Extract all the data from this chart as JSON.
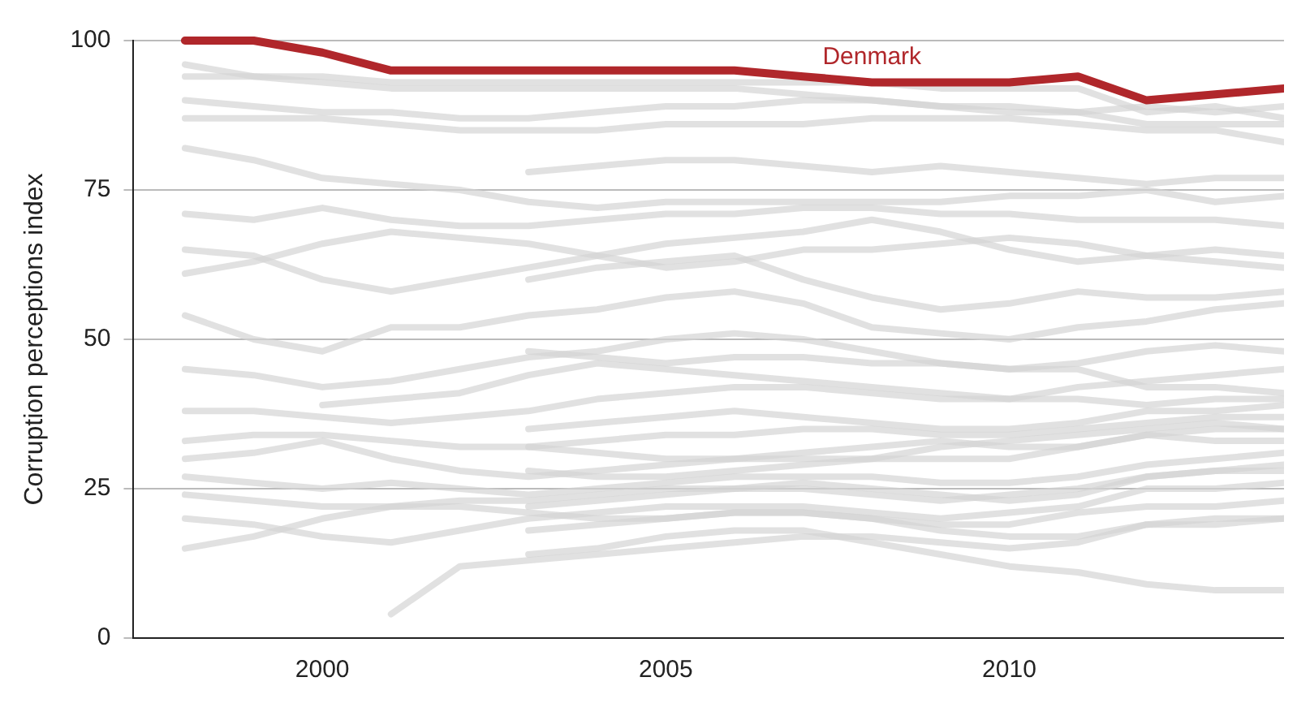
{
  "chart_data": {
    "type": "line",
    "ylabel": "Corruption perceptions index",
    "x": [
      1998,
      1999,
      2000,
      2001,
      2002,
      2003,
      2004,
      2005,
      2006,
      2007,
      2008,
      2009,
      2010,
      2011,
      2012,
      2013,
      2014
    ],
    "xlim": [
      1997.25,
      2014
    ],
    "xticks": [
      2000,
      2005,
      2010
    ],
    "ylim": [
      0,
      100
    ],
    "yticks": [
      0,
      25,
      50,
      75,
      100
    ],
    "grid": "y",
    "legend": false,
    "marker": "none",
    "line_style": "solid",
    "series": [
      {
        "color": "#d4d4d4",
        "values": [
          96,
          94,
          93,
          92,
          92,
          92,
          92,
          92,
          92,
          91,
          90,
          89,
          89,
          88,
          89,
          88,
          89
        ]
      },
      {
        "color": "#d4d4d4",
        "values": [
          94,
          94,
          94,
          93,
          93,
          93,
          93,
          93,
          93,
          93,
          93,
          92,
          92,
          92,
          88,
          89,
          87
        ]
      },
      {
        "color": "#d4d4d4",
        "values": [
          90,
          89,
          88,
          88,
          87,
          87,
          88,
          89,
          89,
          90,
          90,
          89,
          88,
          88,
          86,
          86,
          86
        ]
      },
      {
        "color": "#d4d4d4",
        "values": [
          87,
          87,
          87,
          86,
          85,
          85,
          85,
          86,
          86,
          86,
          87,
          87,
          87,
          86,
          85,
          85,
          83
        ]
      },
      {
        "color": "#d4d4d4",
        "values": [
          82,
          80,
          77,
          76,
          75,
          73,
          72,
          73,
          73,
          73,
          73,
          73,
          74,
          74,
          75,
          73,
          74
        ]
      },
      {
        "color": "#d4d4d4",
        "values": [
          null,
          null,
          null,
          null,
          null,
          78,
          79,
          80,
          80,
          79,
          78,
          79,
          78,
          77,
          76,
          77,
          77
        ]
      },
      {
        "color": "#d4d4d4",
        "values": [
          71,
          70,
          72,
          70,
          69,
          69,
          70,
          71,
          71,
          72,
          72,
          71,
          71,
          70,
          70,
          70,
          69
        ]
      },
      {
        "color": "#d4d4d4",
        "values": [
          65,
          64,
          60,
          58,
          60,
          62,
          64,
          66,
          67,
          68,
          70,
          68,
          65,
          63,
          64,
          65,
          64
        ]
      },
      {
        "color": "#d4d4d4",
        "values": [
          61,
          63,
          66,
          68,
          67,
          66,
          64,
          62,
          63,
          65,
          65,
          66,
          67,
          66,
          64,
          63,
          62
        ]
      },
      {
        "color": "#d4d4d4",
        "values": [
          null,
          null,
          null,
          null,
          null,
          60,
          62,
          63,
          64,
          60,
          57,
          55,
          56,
          58,
          57,
          57,
          58
        ]
      },
      {
        "color": "#d4d4d4",
        "values": [
          54,
          50,
          48,
          52,
          52,
          54,
          55,
          57,
          58,
          56,
          52,
          51,
          50,
          52,
          53,
          55,
          56
        ]
      },
      {
        "color": "#d4d4d4",
        "values": [
          null,
          null,
          null,
          null,
          null,
          48,
          47,
          46,
          47,
          47,
          46,
          46,
          45,
          45,
          42,
          42,
          41
        ]
      },
      {
        "color": "#d4d4d4",
        "values": [
          45,
          44,
          42,
          43,
          45,
          47,
          48,
          50,
          51,
          50,
          48,
          46,
          45,
          46,
          48,
          49,
          48
        ]
      },
      {
        "color": "#d4d4d4",
        "values": [
          null,
          null,
          39,
          40,
          41,
          44,
          46,
          45,
          44,
          43,
          42,
          41,
          40,
          40,
          39,
          40,
          40
        ]
      },
      {
        "color": "#d4d4d4",
        "values": [
          38,
          38,
          37,
          36,
          37,
          38,
          40,
          41,
          42,
          42,
          41,
          40,
          40,
          42,
          43,
          44,
          45
        ]
      },
      {
        "color": "#d4d4d4",
        "values": [
          null,
          null,
          null,
          null,
          null,
          35,
          36,
          37,
          38,
          37,
          36,
          35,
          35,
          36,
          38,
          38,
          39
        ]
      },
      {
        "color": "#d4d4d4",
        "values": [
          33,
          34,
          34,
          33,
          32,
          32,
          33,
          34,
          34,
          35,
          35,
          34,
          34,
          35,
          36,
          37,
          37
        ]
      },
      {
        "color": "#d4d4d4",
        "values": [
          null,
          null,
          null,
          null,
          null,
          32,
          31,
          30,
          30,
          31,
          32,
          33,
          32,
          32,
          34,
          33,
          33
        ]
      },
      {
        "color": "#d4d4d4",
        "values": [
          30,
          31,
          33,
          30,
          28,
          27,
          28,
          29,
          30,
          30,
          30,
          30,
          30,
          32,
          34,
          35,
          35
        ]
      },
      {
        "color": "#d4d4d4",
        "values": [
          null,
          null,
          null,
          null,
          null,
          28,
          27,
          27,
          28,
          29,
          30,
          32,
          33,
          34,
          35,
          36,
          35
        ]
      },
      {
        "color": "#d4d4d4",
        "values": [
          27,
          26,
          25,
          26,
          25,
          24,
          25,
          26,
          27,
          27,
          27,
          26,
          26,
          27,
          29,
          30,
          31
        ]
      },
      {
        "color": "#d4d4d4",
        "values": [
          24,
          23,
          22,
          22,
          23,
          23,
          24,
          25,
          25,
          25,
          24,
          23,
          24,
          25,
          27,
          28,
          28
        ]
      },
      {
        "color": "#d4d4d4",
        "values": [
          null,
          null,
          null,
          null,
          null,
          22,
          23,
          24,
          25,
          26,
          25,
          24,
          23,
          24,
          27,
          28,
          29
        ]
      },
      {
        "color": "#d4d4d4",
        "values": [
          20,
          19,
          17,
          16,
          18,
          20,
          21,
          22,
          22,
          22,
          21,
          20,
          21,
          22,
          25,
          25,
          26
        ]
      },
      {
        "color": "#d4d4d4",
        "values": [
          null,
          null,
          null,
          null,
          null,
          18,
          19,
          20,
          21,
          21,
          20,
          18,
          17,
          17,
          19,
          19,
          20
        ]
      },
      {
        "color": "#d4d4d4",
        "values": [
          15,
          17,
          20,
          22,
          22,
          21,
          20,
          20,
          21,
          21,
          20,
          19,
          19,
          21,
          22,
          22,
          23
        ]
      },
      {
        "color": "#d4d4d4",
        "values": [
          null,
          null,
          null,
          4,
          12,
          13,
          14,
          15,
          16,
          17,
          17,
          16,
          15,
          16,
          19,
          20,
          20
        ]
      },
      {
        "color": "#d4d4d4",
        "values": [
          null,
          null,
          null,
          null,
          null,
          14,
          15,
          17,
          18,
          18,
          16,
          14,
          12,
          11,
          9,
          8,
          8
        ]
      },
      {
        "name": "Denmark",
        "color": "#b0272b",
        "values": [
          100,
          100,
          98,
          95,
          95,
          95,
          95,
          95,
          95,
          94,
          93,
          93,
          93,
          94,
          90,
          91,
          92
        ]
      }
    ]
  }
}
